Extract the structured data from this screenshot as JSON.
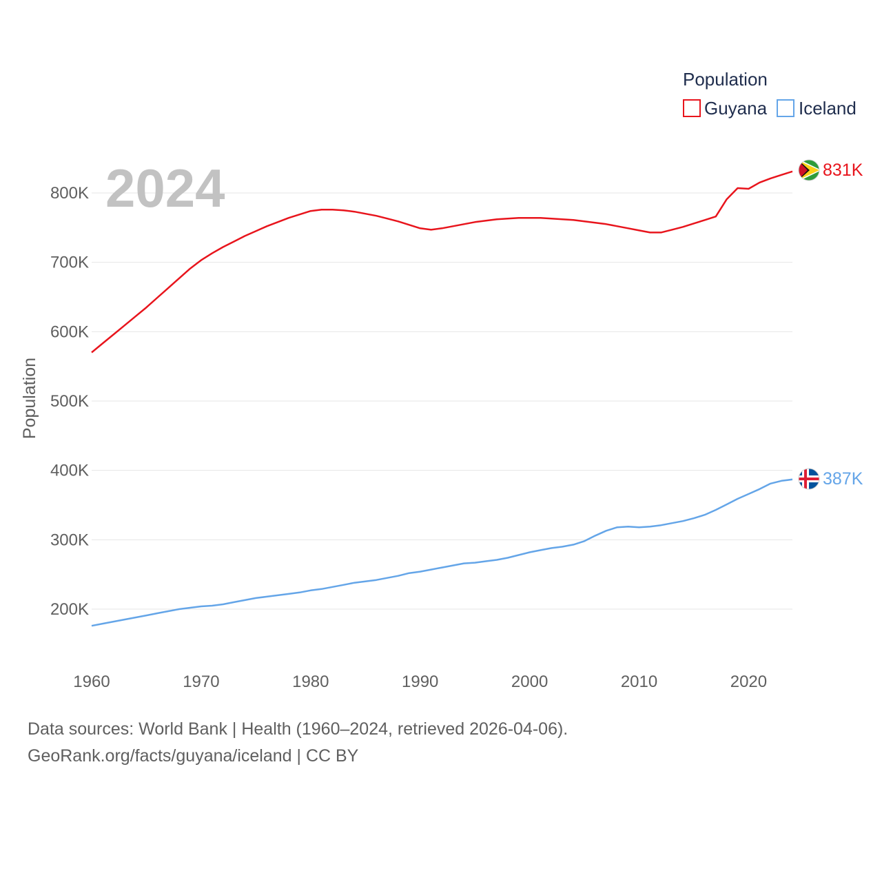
{
  "chart_data": {
    "type": "line",
    "ylabel": "Population",
    "xlabel": "",
    "year_watermark": "2024",
    "legend_title": "Population",
    "xlim": [
      1960,
      2024
    ],
    "ylim": [
      140000,
      860000
    ],
    "x_ticks": [
      1960,
      1970,
      1980,
      1990,
      2000,
      2010,
      2020
    ],
    "x_tick_labels": [
      "1960",
      "1970",
      "1980",
      "1990",
      "2000",
      "2010",
      "2020"
    ],
    "y_ticks": [
      200000,
      300000,
      400000,
      500000,
      600000,
      700000,
      800000
    ],
    "y_tick_labels": [
      "200K",
      "300K",
      "400K",
      "500K",
      "600K",
      "700K",
      "800K"
    ],
    "x": [
      1960,
      1961,
      1962,
      1963,
      1964,
      1965,
      1966,
      1967,
      1968,
      1969,
      1970,
      1971,
      1972,
      1973,
      1974,
      1975,
      1976,
      1977,
      1978,
      1979,
      1980,
      1981,
      1982,
      1983,
      1984,
      1985,
      1986,
      1987,
      1988,
      1989,
      1990,
      1991,
      1992,
      1993,
      1994,
      1995,
      1996,
      1997,
      1998,
      1999,
      2000,
      2001,
      2002,
      2003,
      2004,
      2005,
      2006,
      2007,
      2008,
      2009,
      2010,
      2011,
      2012,
      2013,
      2014,
      2015,
      2016,
      2017,
      2018,
      2019,
      2020,
      2021,
      2022,
      2023,
      2024
    ],
    "series": [
      {
        "name": "Guyana",
        "color": "#e8141c",
        "end_label": "831K",
        "flag": "guyana-flag-icon",
        "values": [
          570000,
          583000,
          596000,
          609000,
          622000,
          635000,
          649000,
          663000,
          677000,
          691000,
          703000,
          713000,
          722000,
          730000,
          738000,
          745000,
          752000,
          758000,
          764000,
          769000,
          774000,
          776000,
          776000,
          775000,
          773000,
          770000,
          767000,
          763000,
          759000,
          754000,
          749000,
          747000,
          749000,
          752000,
          755000,
          758000,
          760000,
          762000,
          763000,
          764000,
          764000,
          764000,
          763000,
          762000,
          761000,
          759000,
          757000,
          755000,
          752000,
          749000,
          746000,
          743000,
          743000,
          747000,
          751000,
          756000,
          761000,
          766000,
          791000,
          807000,
          806000,
          815000,
          821000,
          826000,
          831000
        ]
      },
      {
        "name": "Iceland",
        "color": "#64a5e8",
        "end_label": "387K",
        "flag": "iceland-flag-icon",
        "values": [
          176000,
          179000,
          182000,
          185000,
          188000,
          191000,
          194000,
          197000,
          200000,
          202000,
          204000,
          205000,
          207000,
          210000,
          213000,
          216000,
          218000,
          220000,
          222000,
          224000,
          227000,
          229000,
          232000,
          235000,
          238000,
          240000,
          242000,
          245000,
          248000,
          252000,
          254000,
          257000,
          260000,
          263000,
          266000,
          267000,
          269000,
          271000,
          274000,
          278000,
          282000,
          285000,
          288000,
          290000,
          293000,
          298000,
          306000,
          313000,
          318000,
          319000,
          318000,
          319000,
          321000,
          324000,
          327000,
          331000,
          336000,
          343000,
          351000,
          359000,
          366000,
          373000,
          381000,
          385000,
          387000
        ]
      }
    ]
  },
  "footer": {
    "line1": "Data sources: World Bank | Health (1960–2024, retrieved 2026-04-06).",
    "line2": "GeoRank.org/facts/guyana/iceland | CC BY"
  }
}
